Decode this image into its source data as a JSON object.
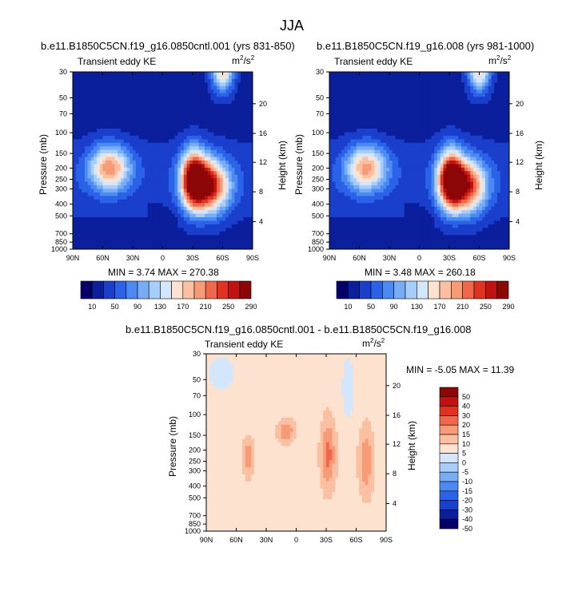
{
  "figure": {
    "title": "JJA"
  },
  "chart_data": [
    {
      "type": "heatmap",
      "title": "b.e11.B1850C5CN.f19_g16.0850cntl.001 (yrs 831-850)",
      "left_label": "Transient eddy KE",
      "units_base": "m",
      "units_sup1": "2",
      "units_mid": "/s",
      "units_sup2": "2",
      "xlabel": "",
      "ylabel": "Pressure (mb)",
      "ylabel_right": "Height (km)",
      "x_ticks": [
        "90N",
        "60N",
        "30N",
        "0",
        "30S",
        "60S",
        "90S"
      ],
      "y_ticks": [
        "30",
        "50",
        "70",
        "100",
        "150",
        "200",
        "250",
        "300",
        "400",
        "500",
        "700",
        "850",
        "1000"
      ],
      "y_ticks_right": [
        "20",
        "16",
        "12",
        "8",
        "4"
      ],
      "min_max_text": "MIN =   3.74   MAX = 270.38",
      "min": 3.74,
      "max": 270.38,
      "colorbar_levels": [
        10,
        30,
        50,
        70,
        90,
        110,
        130,
        150,
        170,
        190,
        210,
        230,
        250,
        270,
        290
      ],
      "colorbar_labels": [
        "10",
        "50",
        "90",
        "130",
        "170",
        "210",
        "250",
        "290"
      ],
      "features": [
        {
          "lat": 53,
          "p": 200,
          "peak": 165,
          "sx": 14,
          "sp": 0.3
        },
        {
          "lat": -31,
          "p": 250,
          "peak": 268,
          "sx": 9,
          "sp": 0.38
        },
        {
          "lat": -48,
          "p": 285,
          "peak": 215,
          "sx": 13,
          "sp": 0.35
        },
        {
          "lat": -60,
          "p": 30,
          "peak": 150,
          "sx": 8,
          "sp": 0.3
        }
      ]
    },
    {
      "type": "heatmap",
      "title": "b.e11.B1850C5CN.f19_g16.008 (yrs 981-1000)",
      "left_label": "Transient eddy KE",
      "units_base": "m",
      "units_sup1": "2",
      "units_mid": "/s",
      "units_sup2": "2",
      "xlabel": "",
      "ylabel": "Pressure (mb)",
      "ylabel_right": "Height (km)",
      "x_ticks": [
        "90N",
        "60N",
        "30N",
        "0",
        "30S",
        "60S",
        "90S"
      ],
      "y_ticks": [
        "30",
        "50",
        "70",
        "100",
        "150",
        "200",
        "250",
        "300",
        "400",
        "500",
        "700",
        "850",
        "1000"
      ],
      "y_ticks_right": [
        "20",
        "16",
        "12",
        "8",
        "4"
      ],
      "min_max_text": "MIN =   3.48   MAX = 260.18",
      "min": 3.48,
      "max": 260.18,
      "colorbar_levels": [
        10,
        30,
        50,
        70,
        90,
        110,
        130,
        150,
        170,
        190,
        210,
        230,
        250,
        270,
        290
      ],
      "colorbar_labels": [
        "10",
        "50",
        "90",
        "130",
        "170",
        "210",
        "250",
        "290"
      ],
      "features": [
        {
          "lat": 53,
          "p": 200,
          "peak": 160,
          "sx": 14,
          "sp": 0.3
        },
        {
          "lat": -31,
          "p": 250,
          "peak": 258,
          "sx": 9,
          "sp": 0.38
        },
        {
          "lat": -48,
          "p": 285,
          "peak": 208,
          "sx": 13,
          "sp": 0.35
        },
        {
          "lat": -60,
          "p": 30,
          "peak": 145,
          "sx": 8,
          "sp": 0.3
        }
      ]
    },
    {
      "type": "heatmap",
      "title": "b.e11.B1850C5CN.f19_g16.0850cntl.001 - b.e11.B1850C5CN.f19_g16.008",
      "left_label": "Transient eddy KE",
      "units_base": "m",
      "units_sup1": "2",
      "units_mid": "/s",
      "units_sup2": "2",
      "xlabel": "",
      "ylabel": "Pressure (mb)",
      "ylabel_right": "Height (km)",
      "x_ticks": [
        "90N",
        "60N",
        "30N",
        "0",
        "30S",
        "60S",
        "90S"
      ],
      "y_ticks": [
        "30",
        "50",
        "70",
        "100",
        "150",
        "200",
        "250",
        "300",
        "400",
        "500",
        "700",
        "850",
        "1000"
      ],
      "y_ticks_right": [
        "20",
        "16",
        "12",
        "8",
        "4"
      ],
      "min_max_text": "MIN = -5.05   MAX = 11.39",
      "min": -5.05,
      "max": 11.39,
      "colorbar_levels": [
        -50,
        -40,
        -30,
        -20,
        -15,
        -10,
        -5,
        0,
        5,
        10,
        15,
        20,
        30,
        40,
        50
      ],
      "colorbar_labels": [
        "50",
        "40",
        "30",
        "20",
        "15",
        "10",
        "5",
        "0",
        "-5",
        "-10",
        "-15",
        "-20",
        "-30",
        "-40",
        "-50"
      ],
      "features": [
        {
          "lat": -32,
          "p": 220,
          "peak": 14,
          "sx": 5,
          "sp": 0.45
        },
        {
          "lat": 48,
          "p": 230,
          "peak": 11,
          "sx": 4,
          "sp": 0.25
        },
        {
          "lat": 10,
          "p": 140,
          "peak": 11,
          "sx": 6,
          "sp": 0.15
        },
        {
          "lat": -70,
          "p": 250,
          "peak": 11,
          "sx": 5,
          "sp": 0.45
        },
        {
          "lat": -52,
          "p": 60,
          "peak": -6,
          "sx": 5,
          "sp": 0.5
        },
        {
          "lat": 75,
          "p": 45,
          "peak": -6,
          "sx": 10,
          "sp": 0.3
        }
      ]
    }
  ]
}
